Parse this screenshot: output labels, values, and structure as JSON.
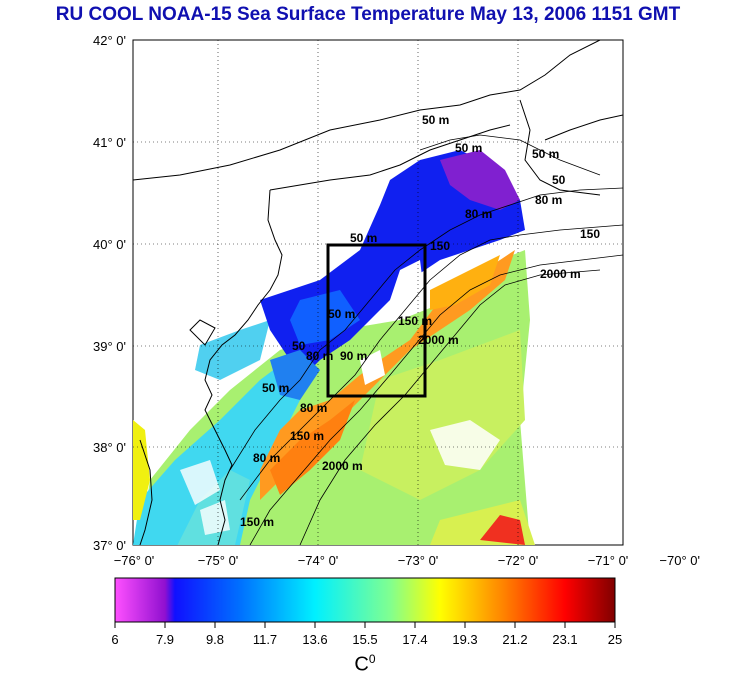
{
  "title": "RU COOL  NOAA-15 Sea Surface Temperature May 13, 2006 1151 GMT",
  "lat_labels": [
    "42° 0'",
    "41° 0'",
    "40° 0'",
    "39° 0'",
    "38° 0'",
    "37° 0'"
  ],
  "lon_labels": [
    "−76° 0'",
    "−75° 0'",
    "−74° 0'",
    "−73° 0'",
    "−72° 0'",
    "−71° 0'",
    "−70° 0'"
  ],
  "contours": [
    {
      "id": "c1",
      "text": "50 m"
    },
    {
      "id": "c2",
      "text": "50 m"
    },
    {
      "id": "c3",
      "text": "50 m"
    },
    {
      "id": "c4",
      "text": "50"
    },
    {
      "id": "c5",
      "text": "80 m"
    },
    {
      "id": "c6",
      "text": "150"
    },
    {
      "id": "c7",
      "text": "50 m"
    },
    {
      "id": "c8",
      "text": "80 m"
    },
    {
      "id": "c9",
      "text": "2000 m"
    },
    {
      "id": "c10",
      "text": "150 m"
    },
    {
      "id": "c11",
      "text": "2000 m"
    },
    {
      "id": "c12",
      "text": "50 m"
    },
    {
      "id": "c13",
      "text": "50"
    },
    {
      "id": "c14",
      "text": "80 m"
    },
    {
      "id": "c15",
      "text": "90 m"
    },
    {
      "id": "c16",
      "text": "50 m"
    },
    {
      "id": "c17",
      "text": "150 m"
    },
    {
      "id": "c18",
      "text": "80 m"
    },
    {
      "id": "c19",
      "text": "2000 m"
    },
    {
      "id": "c20",
      "text": "150 m"
    },
    {
      "id": "c21",
      "text": "80 m"
    },
    {
      "id": "c22",
      "text": "150"
    }
  ],
  "colorbar": {
    "ticks": [
      "6",
      "7.9",
      "9.8",
      "11.7",
      "13.6",
      "15.5",
      "17.4",
      "19.3",
      "21.2",
      "23.1",
      "25"
    ],
    "unit": "C",
    "unit_sup": "0",
    "colors": {
      "low": "#ff40ff",
      "mid_low": "#0000ff",
      "mid": "#00ffff",
      "mid_high": "#ffff00",
      "high": "#ff0000",
      "max": "#800000"
    }
  }
}
